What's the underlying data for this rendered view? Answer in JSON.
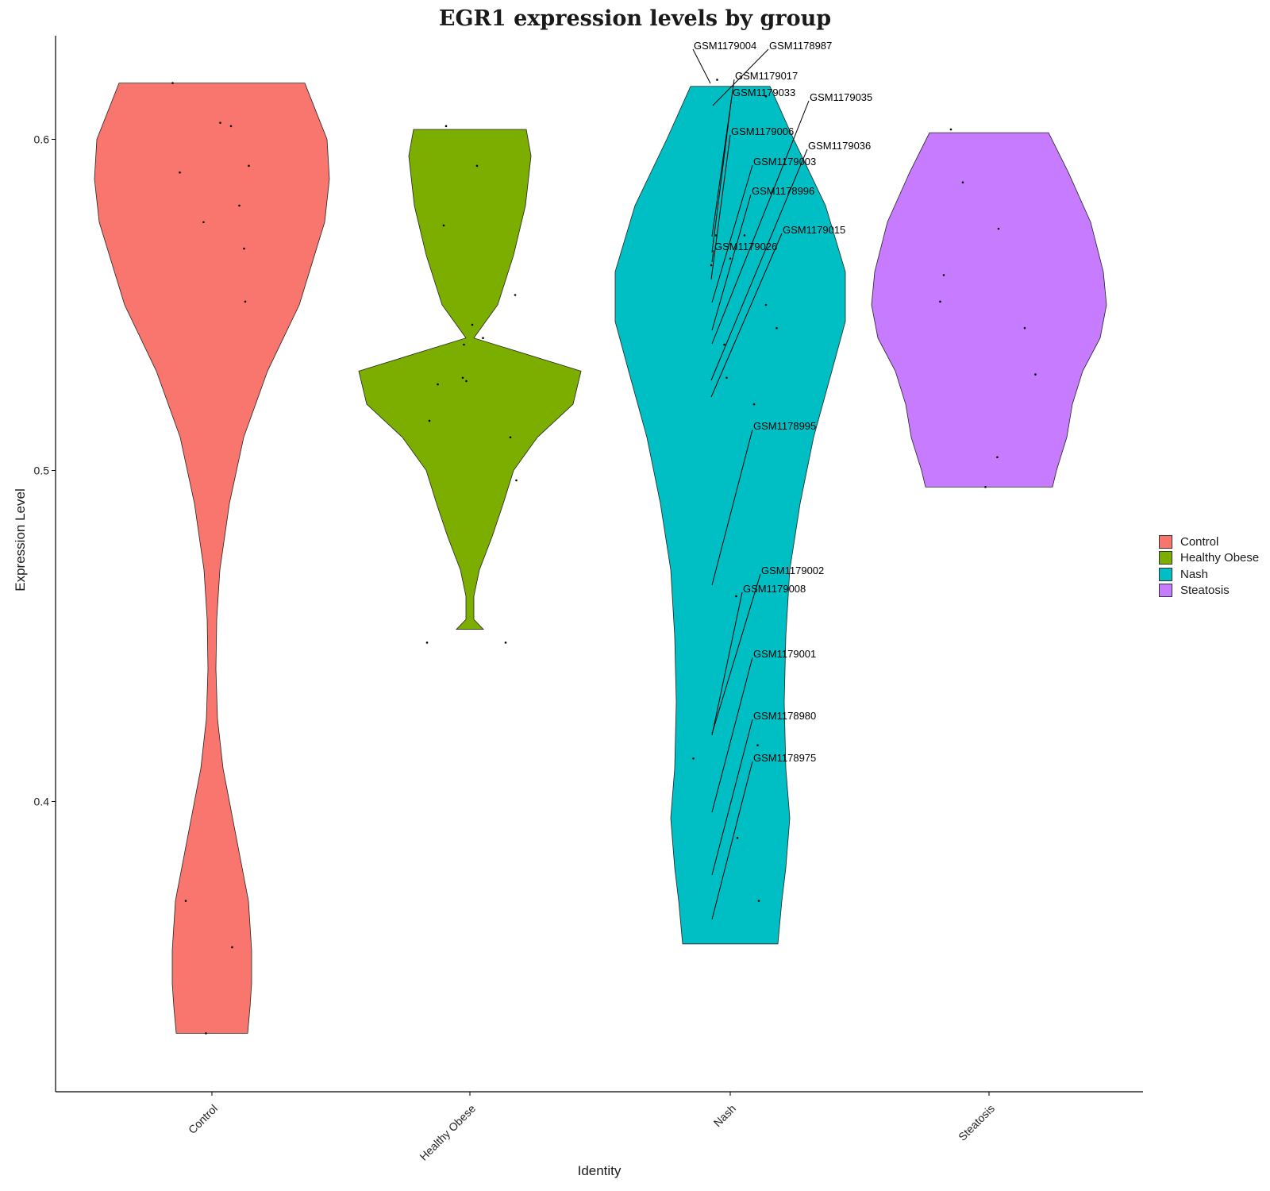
{
  "chart_data": {
    "type": "violin",
    "title": "EGR1 expression levels by group",
    "xlabel": "Identity",
    "ylabel": "Expression Level",
    "ylim": [
      0.315,
      0.633
    ],
    "yticks": [
      "0.4",
      "0.5",
      "0.6"
    ],
    "legend_position": "right",
    "categories": [
      "Control",
      "Healthy Obese",
      "Nash",
      "Steatosis"
    ],
    "series": [
      {
        "name": "Control",
        "color": "#F8766D",
        "min": 0.33,
        "max": 0.617,
        "points": [
          [
            -0.33,
            0.617
          ],
          [
            0.07,
            0.605
          ],
          [
            -0.27,
            0.59
          ],
          [
            0.16,
            0.604
          ],
          [
            0.31,
            0.592
          ],
          [
            -0.07,
            0.575
          ],
          [
            0.23,
            0.58
          ],
          [
            0.27,
            0.567
          ],
          [
            0.28,
            0.551
          ],
          [
            -0.22,
            0.37
          ],
          [
            0.17,
            0.356
          ],
          [
            -0.05,
            0.33
          ]
        ]
      },
      {
        "name": "Healthy Obese",
        "color": "#7CAE00",
        "min": 0.452,
        "max": 0.603,
        "points": [
          [
            -0.2,
            0.604
          ],
          [
            0.06,
            0.592
          ],
          [
            -0.22,
            0.574
          ],
          [
            0.38,
            0.553
          ],
          [
            0.02,
            0.544
          ],
          [
            -0.05,
            0.538
          ],
          [
            0.11,
            0.54
          ],
          [
            -0.06,
            0.528
          ],
          [
            -0.03,
            0.527
          ],
          [
            -0.27,
            0.526
          ],
          [
            -0.34,
            0.515
          ],
          [
            0.34,
            0.51
          ],
          [
            0.39,
            0.497
          ],
          [
            -0.36,
            0.448
          ],
          [
            0.3,
            0.448
          ]
        ]
      },
      {
        "name": "Nash",
        "color": "#00BFC4",
        "min": 0.357,
        "max": 0.616,
        "points": [
          [
            -0.11,
            0.618
          ],
          [
            -0.12,
            0.571
          ],
          [
            -0.16,
            0.562
          ],
          [
            0.12,
            0.571
          ],
          [
            0.3,
            0.613
          ],
          [
            0.3,
            0.55
          ],
          [
            0.39,
            0.543
          ],
          [
            -0.05,
            0.538
          ],
          [
            -0.03,
            0.528
          ],
          [
            0.2,
            0.52
          ],
          [
            0.05,
            0.462
          ],
          [
            -0.31,
            0.413
          ],
          [
            0.23,
            0.417
          ],
          [
            0.06,
            0.389
          ],
          [
            0.24,
            0.37
          ],
          [
            0,
            0.564
          ]
        ]
      },
      {
        "name": "Steatosis",
        "color": "#C77CFF",
        "min": 0.495,
        "max": 0.602,
        "points": [
          [
            -0.32,
            0.603
          ],
          [
            -0.22,
            0.587
          ],
          [
            0.08,
            0.573
          ],
          [
            -0.38,
            0.559
          ],
          [
            -0.41,
            0.551
          ],
          [
            0.3,
            0.543
          ],
          [
            0.39,
            0.529
          ],
          [
            0.07,
            0.504
          ],
          [
            -0.03,
            0.495
          ]
        ]
      }
    ],
    "annotations": [
      {
        "label": "GSM1179004",
        "x": 2,
        "y": 0.619
      },
      {
        "label": "GSM1178987",
        "x": 2,
        "y": 0.612
      },
      {
        "label": "GSM1179017",
        "x": 2,
        "y": 0.563
      },
      {
        "label": "GSM1179033",
        "x": 2,
        "y": 0.566
      },
      {
        "label": "GSM1179035",
        "x": 2,
        "y": 0.537
      },
      {
        "label": "GSM1179006",
        "x": 2,
        "y": 0.571
      },
      {
        "label": "GSM1179036",
        "x": 2,
        "y": 0.528
      },
      {
        "label": "GSM1179003",
        "x": 2,
        "y": 0.551
      },
      {
        "label": "GSM1178996",
        "x": 2,
        "y": 0.541
      },
      {
        "label": "GSM1179015",
        "x": 2,
        "y": 0.52
      },
      {
        "label": "GSM1179026",
        "x": 2,
        "y": 0.563
      },
      {
        "label": "GSM1178995",
        "x": 2,
        "y": 0.46
      },
      {
        "label": "GSM1179002",
        "x": 2,
        "y": 0.414
      },
      {
        "label": "GSM1179008",
        "x": 2,
        "y": 0.416
      },
      {
        "label": "GSM1179001",
        "x": 2,
        "y": 0.39
      },
      {
        "label": "GSM1178980",
        "x": 2,
        "y": 0.37
      },
      {
        "label": "GSM1178975",
        "x": 2,
        "y": 0.357
      }
    ]
  }
}
